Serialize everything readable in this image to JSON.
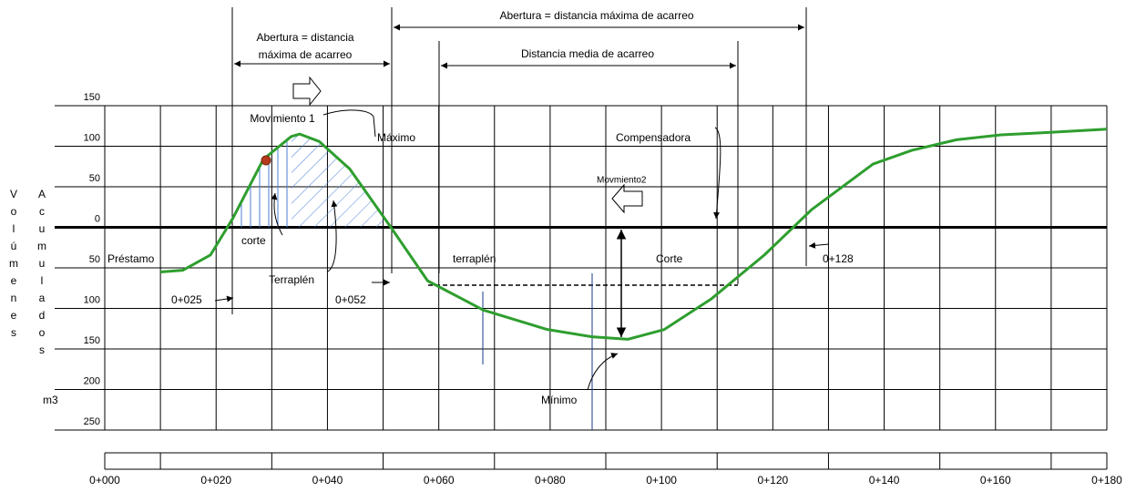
{
  "chart_data": {
    "type": "line",
    "y_label": [
      "Volúmenes",
      "Acumulados",
      "m3"
    ],
    "xlim": [
      0,
      180
    ],
    "ylim": [
      -250,
      150
    ],
    "xticks": [
      {
        "value": 0,
        "label": "0+000"
      },
      {
        "value": 10,
        "label": null
      },
      {
        "value": 20,
        "label": "0+020"
      },
      {
        "value": 30,
        "label": null
      },
      {
        "value": 40,
        "label": "0+040"
      },
      {
        "value": 50,
        "label": null
      },
      {
        "value": 60,
        "label": "0+060"
      },
      {
        "value": 70,
        "label": null
      },
      {
        "value": 80,
        "label": "0+080"
      },
      {
        "value": 90,
        "label": null
      },
      {
        "value": 100,
        "label": "0+100"
      },
      {
        "value": 110,
        "label": null
      },
      {
        "value": 120,
        "label": "0+120"
      },
      {
        "value": 130,
        "label": null
      },
      {
        "value": 140,
        "label": "0+140"
      },
      {
        "value": 150,
        "label": null
      },
      {
        "value": 160,
        "label": "0+160"
      },
      {
        "value": 170,
        "label": null
      },
      {
        "value": 180,
        "label": "0+180"
      }
    ],
    "yticks": [
      150,
      100,
      50,
      0,
      {
        "value": -50,
        "label": "50"
      },
      {
        "value": -100,
        "label": "100"
      },
      {
        "value": -150,
        "label": "150"
      },
      {
        "value": -200,
        "label": "200"
      },
      {
        "value": -250,
        "label": "250"
      }
    ],
    "grid": true,
    "x": [
      10,
      14,
      19,
      23,
      28.5,
      33.5,
      35,
      38.5,
      44,
      51.5,
      58,
      68,
      79.5,
      87.5,
      94,
      100.5,
      109,
      118.5,
      127,
      138,
      145,
      153,
      161,
      169.5,
      180
    ],
    "series": [
      {
        "color": "#2e9e2e",
        "values": [
          -55,
          -53,
          -34,
          11,
          84,
          112,
          115,
          106,
          72,
          -1,
          -66,
          -102,
          -126,
          -135,
          -138,
          -126,
          -88,
          -34,
          22,
          78,
          95,
          108,
          114,
          117,
          121
        ]
      }
    ],
    "annotations": [
      "Abertura = distancia máxima de acarreo",
      "Abertura = distancia",
      "máxima de acarreo",
      "Distancia media de acarreo",
      "Movimiento 1",
      "Máximo",
      "Compensadora",
      "Movmiento2",
      "corte",
      "Préstamo",
      "Terraplén",
      "terraplén",
      "Corte",
      "0+025",
      "0+052",
      "0+128",
      "Mínimo"
    ]
  }
}
